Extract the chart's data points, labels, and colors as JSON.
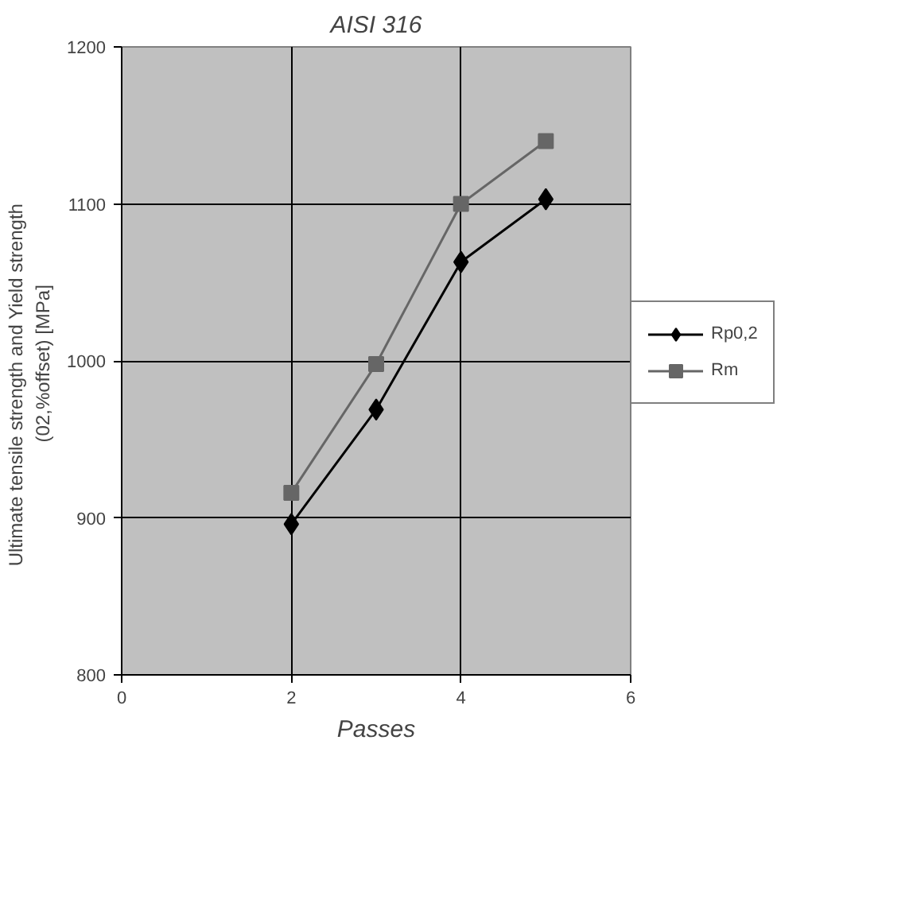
{
  "chart_data": {
    "type": "line",
    "title": "AISI 316",
    "xlabel": "Passes",
    "ylabel": "Ultimate tensile strength and Yield          strength\n(02,%offset)  [MPa]",
    "x": [
      2,
      3,
      4,
      5
    ],
    "series": [
      {
        "name": "Rp0,2",
        "color": "#000000",
        "marker": "diamond",
        "values": [
          896,
          969,
          1063,
          1103
        ]
      },
      {
        "name": "Rm",
        "color": "#666666",
        "marker": "square",
        "values": [
          916,
          998,
          1100,
          1140
        ]
      }
    ],
    "xlim": [
      0,
      6
    ],
    "xticks": [
      0,
      2,
      4,
      6
    ],
    "ylim": [
      800,
      1200
    ],
    "yticks": [
      800,
      900,
      1000,
      1100,
      1200
    ],
    "grid": true,
    "legend": "right",
    "line_style": "solid"
  }
}
